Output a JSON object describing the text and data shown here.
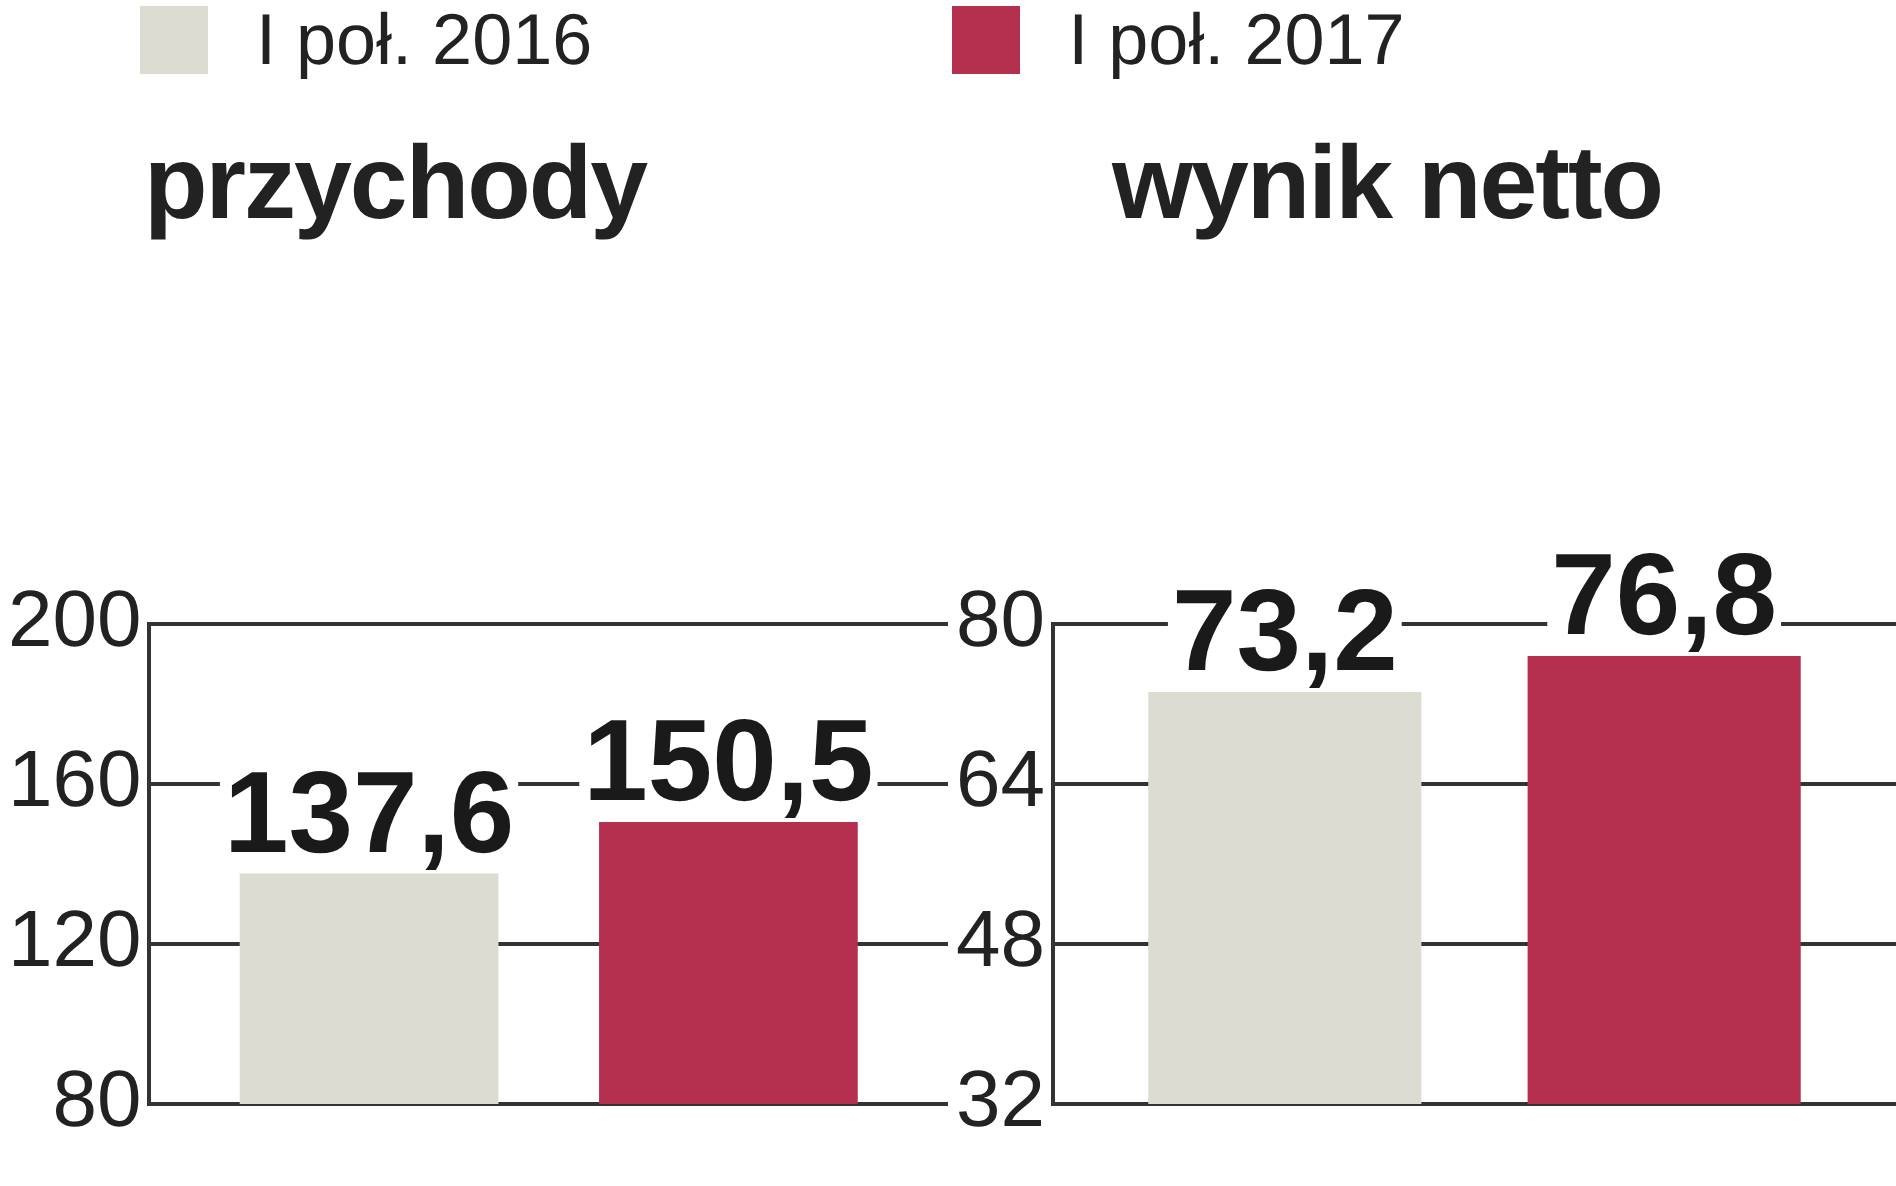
{
  "chart_data": [
    {
      "type": "bar",
      "title": "przychody",
      "categories": [
        null
      ],
      "series": [
        {
          "name": "I poł. 2016",
          "color": "#dcdcd2",
          "values": [
            137.6
          ],
          "value_labels": [
            "137,6"
          ]
        },
        {
          "name": "I poł. 2017",
          "color": "#b5304f",
          "values": [
            150.5
          ],
          "value_labels": [
            "150,5"
          ]
        }
      ],
      "ylim": [
        80,
        200
      ],
      "yticks": [
        80,
        120,
        160,
        200
      ],
      "grid": "y",
      "legend": "top",
      "tick_labels": "y"
    },
    {
      "type": "bar",
      "title": "wynik netto",
      "categories": [
        null
      ],
      "series": [
        {
          "color": "#dcdcd2",
          "values": [
            73.2
          ],
          "value_labels": [
            "73,2"
          ]
        },
        {
          "color": "#b5304f",
          "values": [
            76.8
          ],
          "value_labels": [
            "76,8"
          ]
        }
      ],
      "ylim": [
        32,
        80
      ],
      "yticks": [
        32,
        48,
        64,
        80
      ],
      "grid": "y",
      "legend": false,
      "tick_labels": "y"
    }
  ]
}
